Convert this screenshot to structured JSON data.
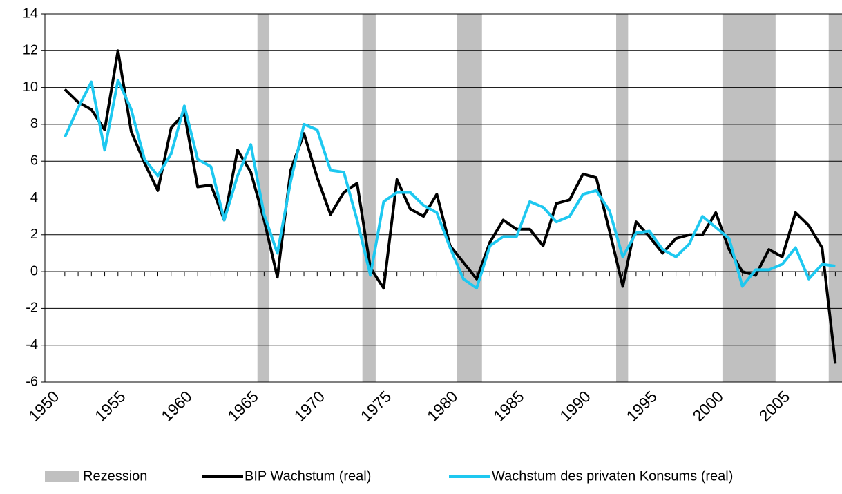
{
  "chart_data": {
    "type": "line",
    "x": [
      1951,
      1952,
      1953,
      1954,
      1955,
      1956,
      1957,
      1958,
      1959,
      1960,
      1961,
      1962,
      1963,
      1964,
      1965,
      1966,
      1967,
      1968,
      1969,
      1970,
      1971,
      1972,
      1973,
      1974,
      1975,
      1976,
      1977,
      1978,
      1979,
      1980,
      1981,
      1982,
      1983,
      1984,
      1985,
      1986,
      1987,
      1988,
      1989,
      1990,
      1991,
      1992,
      1993,
      1994,
      1995,
      1996,
      1997,
      1998,
      1999,
      2000,
      2001,
      2002,
      2003,
      2004,
      2005,
      2006,
      2007,
      2008,
      2009
    ],
    "series": [
      {
        "name": "BIP Wachstum (real)",
        "color": "#000000",
        "values": [
          9.9,
          9.2,
          8.8,
          7.7,
          12.0,
          7.6,
          5.9,
          4.4,
          7.8,
          8.6,
          4.6,
          4.7,
          2.8,
          6.6,
          5.4,
          2.8,
          -0.3,
          5.5,
          7.5,
          5.1,
          3.1,
          4.3,
          4.8,
          0.2,
          -0.9,
          5.0,
          3.4,
          3.0,
          4.2,
          1.4,
          0.5,
          -0.4,
          1.6,
          2.8,
          2.3,
          2.3,
          1.4,
          3.7,
          3.9,
          5.3,
          5.1,
          2.2,
          -0.8,
          2.7,
          1.9,
          1.0,
          1.8,
          2.0,
          2.0,
          3.2,
          1.2,
          0.0,
          -0.2,
          1.2,
          0.8,
          3.2,
          2.5,
          1.3,
          -5.0
        ]
      },
      {
        "name": "Wachstum des privaten Konsums (real)",
        "color": "#1ec8f0",
        "values": [
          7.3,
          8.9,
          10.3,
          6.6,
          10.4,
          8.8,
          6.1,
          5.2,
          6.4,
          9.0,
          6.1,
          5.7,
          2.8,
          5.2,
          6.9,
          3.1,
          1.0,
          4.9,
          8.0,
          7.7,
          5.5,
          5.4,
          2.8,
          -0.2,
          3.8,
          4.3,
          4.3,
          3.6,
          3.2,
          1.3,
          -0.4,
          -0.9,
          1.4,
          1.9,
          1.9,
          3.8,
          3.5,
          2.7,
          3.0,
          4.2,
          4.4,
          3.3,
          0.8,
          2.1,
          2.2,
          1.2,
          0.8,
          1.5,
          3.0,
          2.4,
          1.8,
          -0.8,
          0.1,
          0.1,
          0.4,
          1.3,
          -0.4,
          0.4,
          0.3
        ]
      }
    ],
    "shaded": {
      "name": "Rezession",
      "color": "#c0c0c0",
      "ranges": [
        [
          1965.5,
          1966.4
        ],
        [
          1973.4,
          1974.4
        ],
        [
          1980.5,
          1982.4
        ],
        [
          1992.5,
          1993.4
        ],
        [
          2000.5,
          2004.5
        ],
        [
          2008.5,
          2009.5
        ]
      ]
    },
    "xlim": [
      1949.5,
      2009.5
    ],
    "xticks": [
      1950,
      1955,
      1960,
      1965,
      1970,
      1975,
      1980,
      1985,
      1990,
      1995,
      2000,
      2005
    ],
    "ylim": [
      -6,
      14
    ],
    "yticks": [
      -6,
      -4,
      -2,
      0,
      2,
      4,
      6,
      8,
      10,
      12,
      14
    ],
    "grid": true,
    "legend": "bottom"
  }
}
